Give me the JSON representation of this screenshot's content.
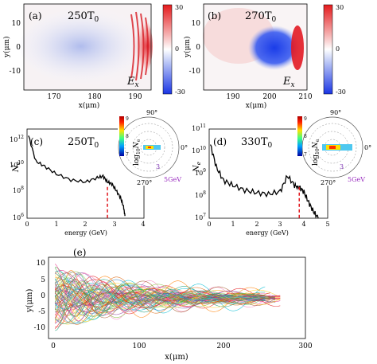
{
  "figure": {
    "panel_a": {
      "letter": "(a)",
      "time": "250T",
      "time_sub": "0",
      "field": "E",
      "field_sub": "x",
      "ylabel": "y(μm)",
      "xlabel": "x(μm)",
      "xticks": [
        "170",
        "180",
        "190"
      ],
      "yticks": [
        "10",
        "0",
        "-10"
      ],
      "colorbar": [
        "30",
        "0",
        "-30"
      ]
    },
    "panel_b": {
      "letter": "(b)",
      "time": "270T",
      "time_sub": "0",
      "field": "E",
      "field_sub": "x",
      "ylabel": "y(μm)",
      "xlabel": "x(μm)",
      "xticks": [
        "190",
        "200",
        "210"
      ],
      "yticks": [
        "10",
        "0",
        "-10"
      ],
      "colorbar": [
        "30",
        "0",
        "-30"
      ]
    },
    "panel_c": {
      "letter": "(c)",
      "time": "250T",
      "time_sub": "0",
      "ylabel": "N",
      "ylabel_sub": "e",
      "xlabel": "energy (GeV)",
      "xticks": [
        "0",
        "1",
        "2",
        "3",
        "4"
      ],
      "yticks": [
        "10",
        "10",
        "10",
        "10"
      ],
      "yexp": [
        "12",
        "10",
        "8",
        "6"
      ]
    },
    "panel_d": {
      "letter": "(d)",
      "time": "330T",
      "time_sub": "0",
      "ylabel": "N",
      "ylabel_sub": "e",
      "xlabel": "energy (GeV)",
      "xticks": [
        "0",
        "1",
        "2",
        "3",
        "4",
        "5"
      ],
      "yticks": [
        "10",
        "10",
        "10",
        "10",
        "10"
      ],
      "yexp": [
        "11",
        "10",
        "9",
        "8",
        "7"
      ]
    },
    "polar_c": {
      "top": "90°",
      "right": "0°",
      "bottom": "270°",
      "energy": "5GeV",
      "ring": "3",
      "cb_label": "log",
      "cb_label_sub": "10",
      "cb_label_n": "N",
      "cb_label_nsub": "e",
      "cb_ticks": [
        "9",
        "8",
        "7"
      ]
    },
    "polar_d": {
      "top": "90°",
      "right": "0°",
      "bottom": "270°",
      "energy": "5GeV",
      "ring": "3",
      "cb_label": "log",
      "cb_label_sub": "10",
      "cb_label_n": "N",
      "cb_label_nsub": "e",
      "cb_ticks": [
        "9",
        "8",
        "7"
      ]
    },
    "panel_e": {
      "letter": "(e)",
      "ylabel": "y(μm)",
      "xlabel": "x(μm)",
      "xticks": [
        "0",
        "100",
        "200",
        "300"
      ],
      "yticks": [
        "10",
        "5",
        "0",
        "-5",
        "-10"
      ]
    }
  },
  "chart_data": [
    {
      "type": "heatmap",
      "panel": "a",
      "field": "Ex",
      "x_range": [
        165,
        195
      ],
      "y_range": [
        -15,
        15
      ],
      "color_range": [
        -30,
        30
      ]
    },
    {
      "type": "heatmap",
      "panel": "b",
      "field": "Ex",
      "x_range": [
        183,
        210
      ],
      "y_range": [
        -15,
        15
      ],
      "color_range": [
        -30,
        30
      ]
    },
    {
      "type": "line",
      "panel": "c",
      "log_y": true,
      "xlim": [
        0,
        4
      ],
      "ylim": [
        1000000.0,
        10000000000000.0
      ],
      "x": [
        0.05,
        0.3,
        0.6,
        1.0,
        1.5,
        2.0,
        2.4,
        2.6,
        2.75,
        2.9,
        3.05,
        3.2,
        3.3,
        3.35
      ],
      "y": [
        3000000000000.0,
        30000000000.0,
        12000000000.0,
        3000000000.0,
        1000000000.0,
        700000000.0,
        1500000000.0,
        2000000000.0,
        700000000.0,
        500000000.0,
        150000000.0,
        40000000.0,
        8000000.0,
        1500000.0
      ],
      "marker_x": 2.75
    },
    {
      "type": "line",
      "panel": "d",
      "log_y": true,
      "xlim": [
        0,
        5
      ],
      "ylim": [
        10000000.0,
        100000000000.0
      ],
      "x": [
        0.05,
        0.3,
        0.6,
        1.0,
        1.5,
        2.0,
        2.5,
        3.0,
        3.3,
        3.6,
        3.8,
        4.0,
        4.2,
        4.4,
        4.6
      ],
      "y": [
        20000000000.0,
        2000000000.0,
        500000000.0,
        300000000.0,
        180000000.0,
        140000000.0,
        120000000.0,
        160000000.0,
        800000000.0,
        300000000.0,
        250000000.0,
        150000000.0,
        50000000.0,
        20000000.0,
        10000000.0
      ],
      "marker_x": 3.8
    },
    {
      "type": "line",
      "panel": "e",
      "xlim": [
        0,
        300
      ],
      "ylim": [
        -12,
        12
      ],
      "x_end": 270
    }
  ]
}
